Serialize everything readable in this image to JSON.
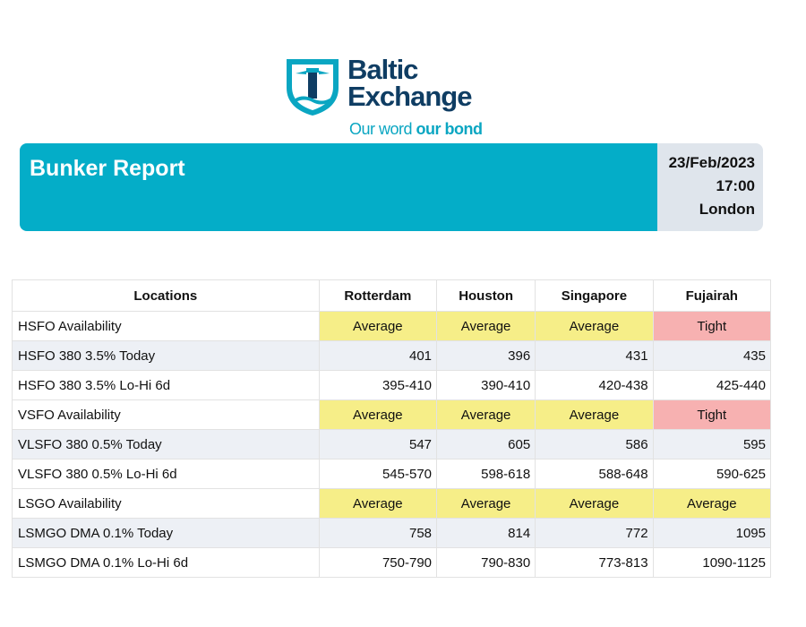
{
  "logo": {
    "name_line1": "Baltic",
    "name_line2": "Exchange",
    "tagline_part1": "Our word ",
    "tagline_part2": "our bond",
    "colors": {
      "navy": "#0f3d63",
      "teal": "#0aa6c2"
    }
  },
  "header": {
    "title": "Bunker Report",
    "date": "23/Feb/2023",
    "time": "17:00",
    "location": "London"
  },
  "table": {
    "columns": [
      "Locations",
      "Rotterdam",
      "Houston",
      "Singapore",
      "Fujairah"
    ],
    "rows": [
      {
        "label": "HSFO Availability",
        "kind": "status",
        "values": [
          "Average",
          "Average",
          "Average",
          "Tight"
        ]
      },
      {
        "label": "HSFO 380 3.5% Today",
        "kind": "num",
        "values": [
          "401",
          "396",
          "431",
          "435"
        ]
      },
      {
        "label": "HSFO 380 3.5% Lo-Hi 6d",
        "kind": "num",
        "values": [
          "395-410",
          "390-410",
          "420-438",
          "425-440"
        ]
      },
      {
        "label": "VSFO Availability",
        "kind": "status",
        "values": [
          "Average",
          "Average",
          "Average",
          "Tight"
        ]
      },
      {
        "label": "VLSFO 380 0.5% Today",
        "kind": "num",
        "values": [
          "547",
          "605",
          "586",
          "595"
        ]
      },
      {
        "label": "VLSFO 380 0.5% Lo-Hi 6d",
        "kind": "num",
        "values": [
          "545-570",
          "598-618",
          "588-648",
          "590-625"
        ]
      },
      {
        "label": "LSGO Availability",
        "kind": "status",
        "values": [
          "Average",
          "Average",
          "Average",
          "Average"
        ]
      },
      {
        "label": "LSMGO DMA 0.1% Today",
        "kind": "num",
        "values": [
          "758",
          "814",
          "772",
          "1095"
        ]
      },
      {
        "label": "LSMGO DMA 0.1% Lo-Hi 6d",
        "kind": "num",
        "values": [
          "750-790",
          "790-830",
          "773-813",
          "1090-1125"
        ]
      }
    ]
  },
  "colors": {
    "banner": "#04adc8",
    "average": "#f6ee88",
    "tight": "#f7b1b1",
    "shade": "#edf0f5"
  }
}
